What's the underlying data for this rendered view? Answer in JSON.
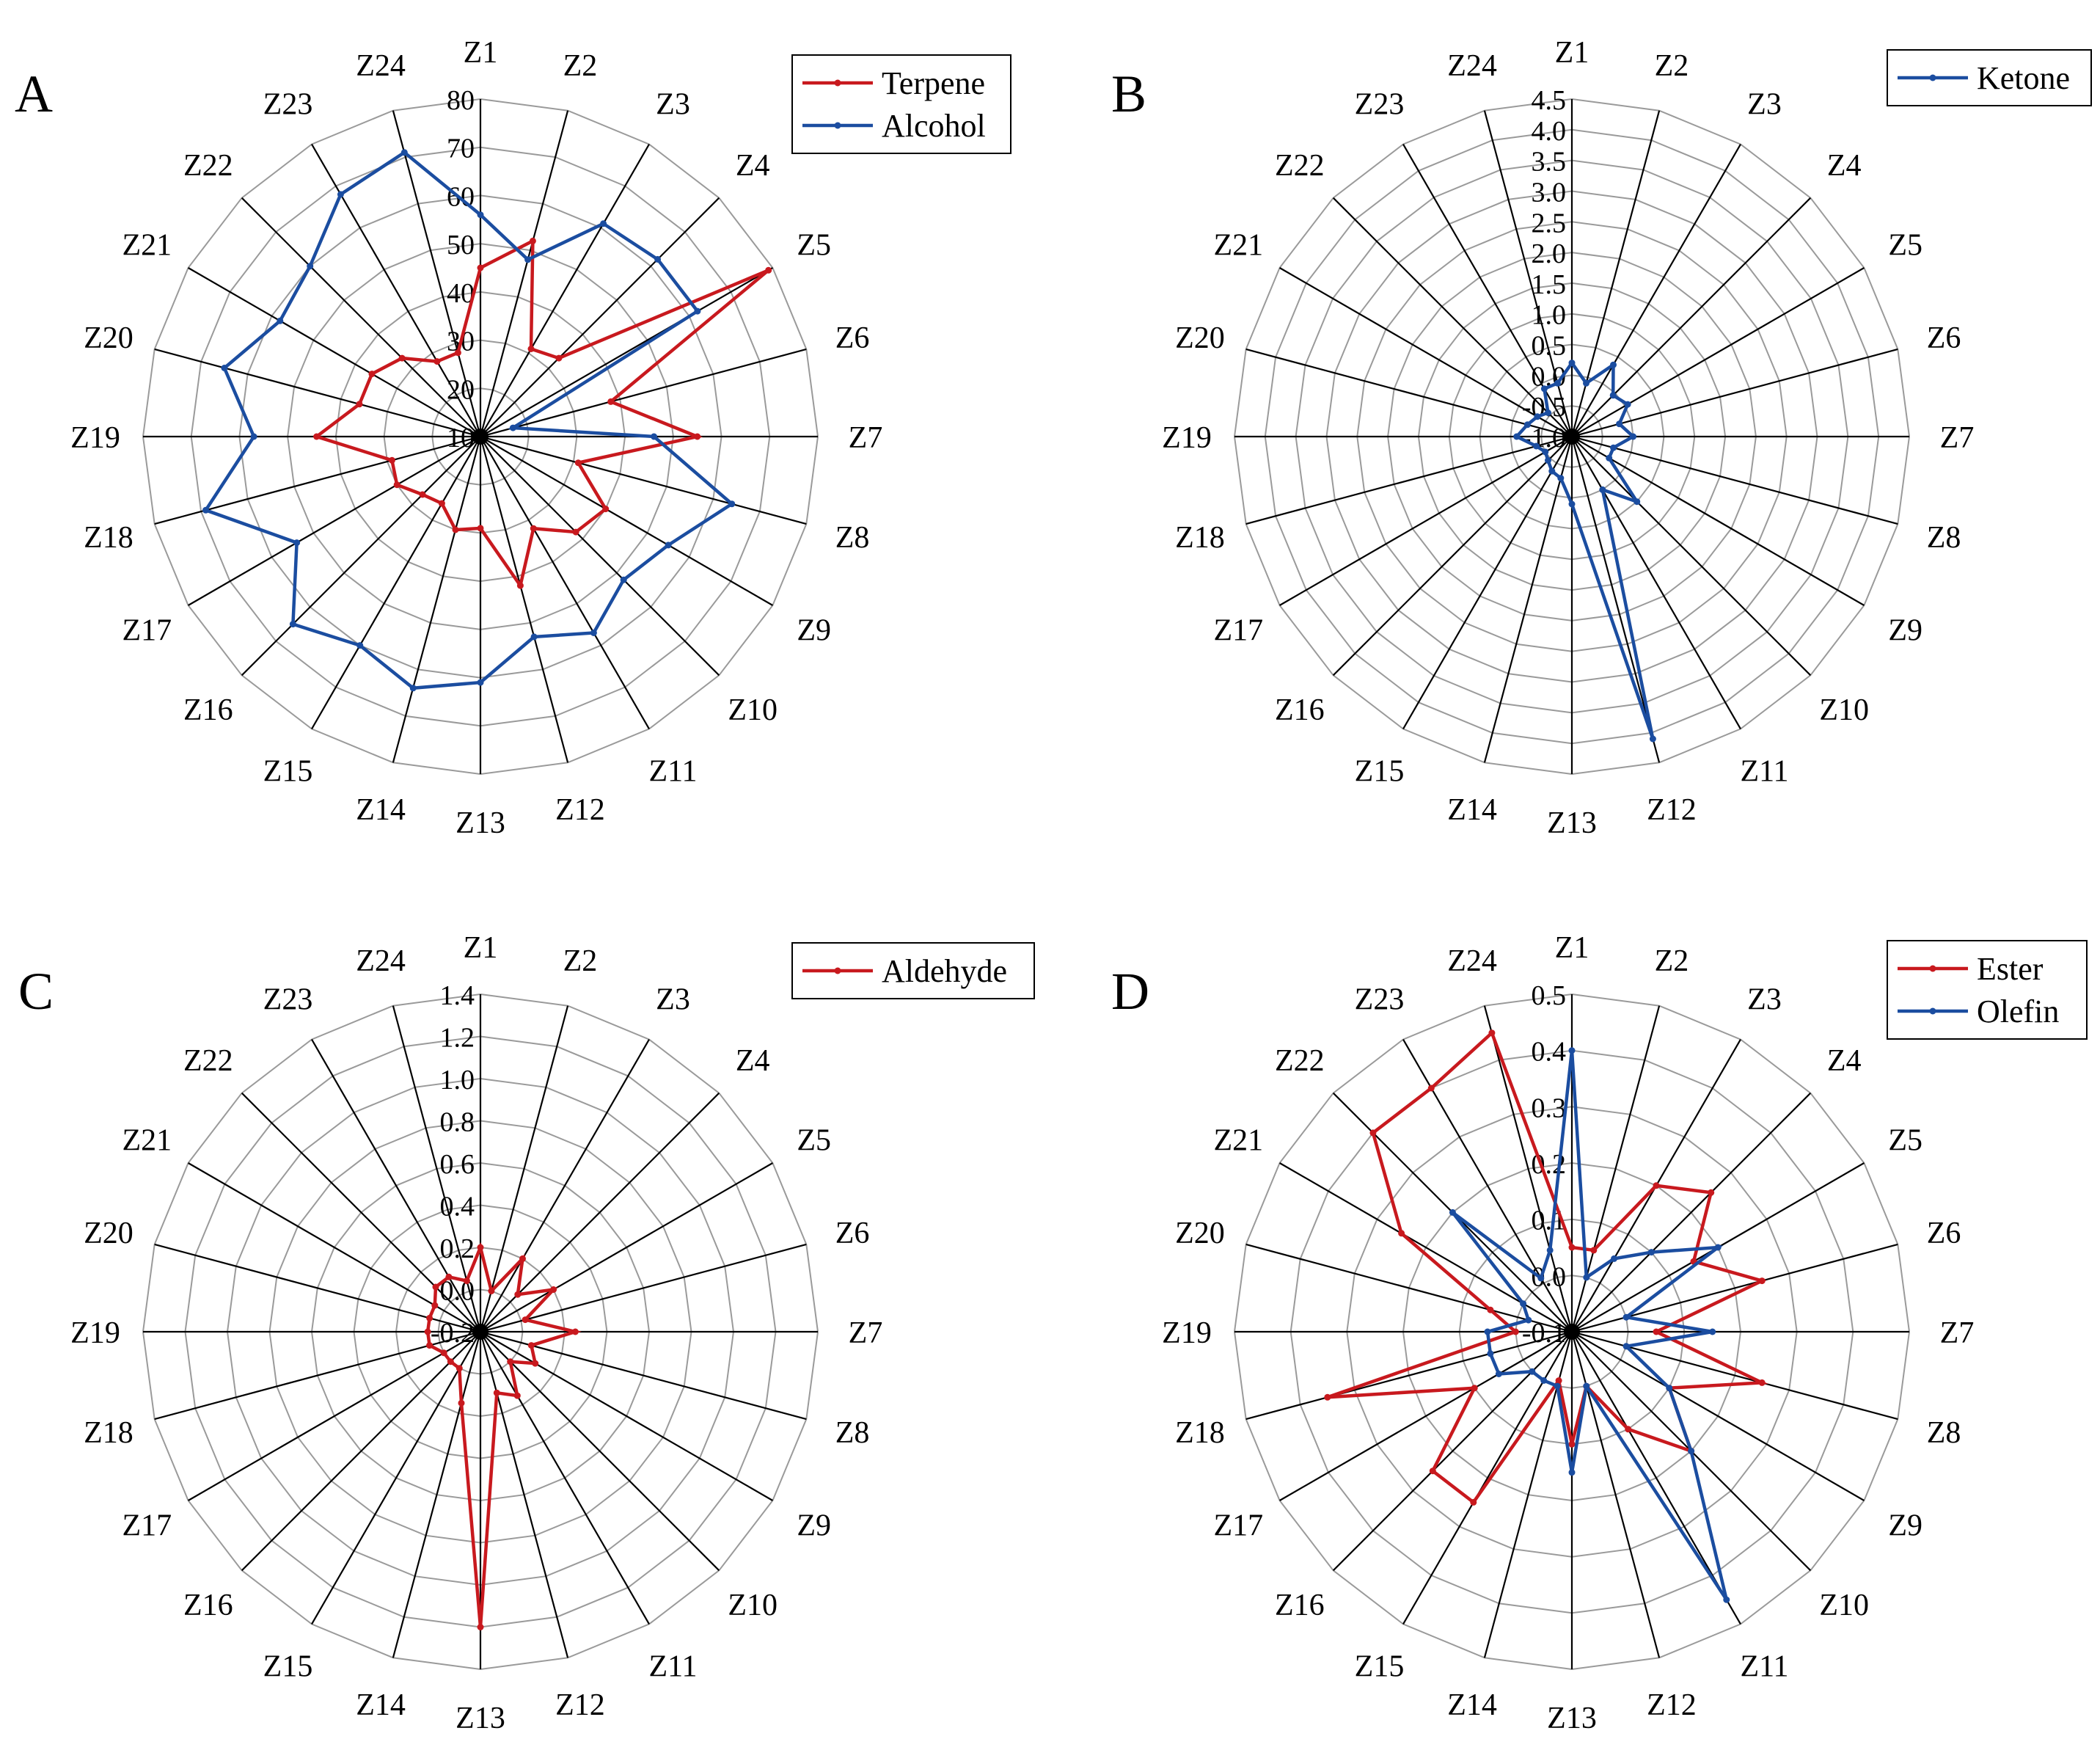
{
  "chart_data": [
    {
      "panel": "A",
      "type": "radar",
      "categories": [
        "Z1",
        "Z2",
        "Z3",
        "Z4",
        "Z5",
        "Z6",
        "Z7",
        "Z8",
        "Z9",
        "Z10",
        "Z11",
        "Z12",
        "Z13",
        "Z14",
        "Z15",
        "Z16",
        "Z17",
        "Z18",
        "Z19",
        "Z20",
        "Z21",
        "Z22",
        "Z23",
        "Z24"
      ],
      "rlim": [
        10,
        80
      ],
      "ticks": [
        10,
        20,
        30,
        40,
        50,
        60,
        70,
        80
      ],
      "tick_labels": [
        "10",
        "20",
        "30",
        "40",
        "50",
        "60",
        "70",
        "80"
      ],
      "legend_position": "top-right",
      "series": [
        {
          "name": "Terpene",
          "color": "#c8191e",
          "values": [
            45,
            52,
            31,
            33,
            79,
            38,
            55,
            31,
            40,
            38,
            32,
            42,
            29,
            30,
            26,
            27,
            30,
            29,
            44,
            36,
            36,
            33,
            28,
            28
          ]
        },
        {
          "name": "Alcohol",
          "color": "#1b4da0",
          "values": [
            56,
            48,
            61,
            62,
            62,
            17,
            46,
            64,
            55,
            52,
            57,
            53,
            61,
            64,
            60,
            65,
            54,
            69,
            57,
            65,
            58,
            60,
            68,
            71
          ]
        }
      ]
    },
    {
      "panel": "B",
      "type": "radar",
      "categories": [
        "Z1",
        "Z2",
        "Z3",
        "Z4",
        "Z5",
        "Z6",
        "Z7",
        "Z8",
        "Z9",
        "Z10",
        "Z11",
        "Z12",
        "Z13",
        "Z14",
        "Z15",
        "Z16",
        "Z17",
        "Z18",
        "Z19",
        "Z20",
        "Z21",
        "Z22",
        "Z23",
        "Z24"
      ],
      "rlim": [
        -1.0,
        4.5
      ],
      "ticks": [
        -1.0,
        -0.5,
        0.0,
        0.5,
        1.0,
        1.5,
        2.0,
        2.5,
        3.0,
        3.5,
        4.0,
        4.5
      ],
      "tick_labels": [
        "-1.0",
        "-0.5",
        "0.0",
        "0.5",
        "1.0",
        "1.5",
        "2.0",
        "2.5",
        "3.0",
        "3.5",
        "4.0",
        "4.5"
      ],
      "legend_position": "top-right",
      "series": [
        {
          "name": "Ketone",
          "color": "#1b4da0",
          "values": [
            0.2,
            -0.1,
            0.35,
            -0.05,
            0.05,
            -0.2,
            0.0,
            -0.3,
            -0.3,
            0.5,
            0.0,
            4.1,
            0.1,
            -0.3,
            -0.35,
            -0.45,
            -0.5,
            -0.4,
            -0.1,
            -0.25,
            -0.35,
            -0.45,
            -0.1,
            -0.1
          ]
        }
      ]
    },
    {
      "panel": "C",
      "type": "radar",
      "categories": [
        "Z1",
        "Z2",
        "Z3",
        "Z4",
        "Z5",
        "Z6",
        "Z7",
        "Z8",
        "Z9",
        "Z10",
        "Z11",
        "Z12",
        "Z13",
        "Z14",
        "Z15",
        "Z16",
        "Z17",
        "Z18",
        "Z19",
        "Z20",
        "Z21",
        "Z22",
        "Z23",
        "Z24"
      ],
      "rlim": [
        -0.2,
        1.4
      ],
      "ticks": [
        -0.2,
        0.0,
        0.2,
        0.4,
        0.6,
        0.8,
        1.0,
        1.2,
        1.4
      ],
      "tick_labels": [
        "-0.2",
        "0.0",
        "0.2",
        "0.4",
        "0.6",
        "0.8",
        "1.0",
        "1.2",
        "1.4"
      ],
      "legend_position": "top-right",
      "series": [
        {
          "name": "Aldehyde",
          "color": "#c8191e",
          "values": [
            0.2,
            0.0,
            0.2,
            0.05,
            0.2,
            0.02,
            0.25,
            0.05,
            0.1,
            0.0,
            0.15,
            0.1,
            1.2,
            0.15,
            0.0,
            0.0,
            0.0,
            0.05,
            0.05,
            0.05,
            0.05,
            0.1,
            0.1,
            0.05
          ]
        }
      ]
    },
    {
      "panel": "D",
      "type": "radar",
      "categories": [
        "Z1",
        "Z2",
        "Z3",
        "Z4",
        "Z5",
        "Z6",
        "Z7",
        "Z8",
        "Z9",
        "Z10",
        "Z11",
        "Z12",
        "Z13",
        "Z14",
        "Z15",
        "Z16",
        "Z17",
        "Z18",
        "Z19",
        "Z20",
        "Z21",
        "Z22",
        "Z23",
        "Z24"
      ],
      "rlim": [
        -0.1,
        0.5
      ],
      "ticks": [
        -0.1,
        0.0,
        0.1,
        0.2,
        0.3,
        0.4,
        0.5
      ],
      "tick_labels": [
        "-0.1",
        "0.0",
        "0.1",
        "0.2",
        "0.3",
        "0.4",
        "0.5"
      ],
      "legend_position": "top-right",
      "series": [
        {
          "name": "Ester",
          "color": "#c8191e",
          "values": [
            0.05,
            0.05,
            0.2,
            0.25,
            0.15,
            0.25,
            0.05,
            0.25,
            0.1,
            0.2,
            0.1,
            0.0,
            0.1,
            -0.01,
            0.25,
            0.25,
            0.1,
            0.35,
            0.0,
            0.05,
            0.25,
            0.4,
            0.4,
            0.45
          ]
        },
        {
          "name": "Olefin",
          "color": "#1b4da0",
          "values": [
            0.4,
            0.0,
            0.05,
            0.1,
            0.2,
            0.0,
            0.15,
            0.0,
            0.1,
            0.2,
            0.45,
            0.0,
            0.15,
            0.0,
            0.0,
            0.0,
            0.05,
            0.05,
            0.05,
            -0.02,
            0.0,
            0.2,
            0.01,
            0.05
          ]
        }
      ]
    }
  ]
}
